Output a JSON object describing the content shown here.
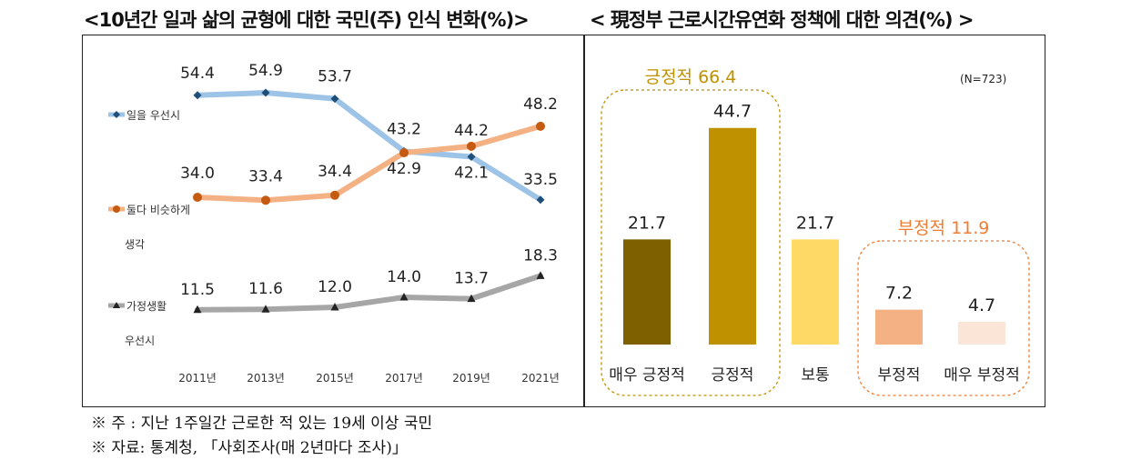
{
  "titles": {
    "left": "<10년간 일과 삶의 균형에 대한 국민(주) 인식 변화(%)>",
    "right": "< 現정부 근로시간유연화 정책에 대한 의견(%) >"
  },
  "notes": {
    "note1": "※ 주 : 지난 1주일간 근로한 적 있는 19세 이상 국민",
    "note2": "※ 자료: 통계청, 「사회조사(매 2년마다 조사)」"
  },
  "chart_data": [
    {
      "type": "line",
      "title": "10년간 일과 삶의 균형에 대한 국민(주) 인식 변화(%)",
      "x": [
        "2011년",
        "2013년",
        "2015년",
        "2017년",
        "2019년",
        "2021년"
      ],
      "ylim": [
        0,
        60
      ],
      "grid": false,
      "legend": "left",
      "series": [
        {
          "name": "일을 우선시",
          "legend_lines": [
            "일을 우선시"
          ],
          "color": "#9dc3e6",
          "marker": "diamond",
          "marker_color": "#1f4e79",
          "values": [
            54.4,
            54.9,
            53.7,
            43.2,
            42.1,
            33.5
          ]
        },
        {
          "name": "둘다 비슷하게 생각",
          "legend_lines": [
            "둘다 비슷하게",
            "생각"
          ],
          "color": "#f4b183",
          "marker": "circle",
          "marker_color": "#c55a11",
          "values": [
            34.0,
            33.4,
            34.4,
            42.9,
            44.2,
            48.2
          ]
        },
        {
          "name": "가정생활 우선시",
          "legend_lines": [
            "가정생활",
            "우선시"
          ],
          "color": "#a6a6a6",
          "marker": "triangle",
          "marker_color": "#222222",
          "values": [
            11.5,
            11.6,
            12.0,
            14.0,
            13.7,
            18.3
          ]
        }
      ]
    },
    {
      "type": "bar",
      "title": "現정부 근로시간유연화 정책에 대한 의견(%)",
      "categories": [
        "매우 긍정적",
        "긍정적",
        "보통",
        "부정적",
        "매우 부정적"
      ],
      "values": [
        21.7,
        44.7,
        21.7,
        7.2,
        4.7
      ],
      "colors": [
        "#7f6000",
        "#bf9000",
        "#ffd966",
        "#f4b183",
        "#fbe5d6"
      ],
      "ylim": [
        0,
        50
      ],
      "annotation_n": "(N=723)",
      "groups": [
        {
          "label": "긍정적 66.4",
          "color": "#bf9000",
          "members": [
            0,
            1
          ]
        },
        {
          "label": "부정적 11.9",
          "color": "#ed7d31",
          "members": [
            3,
            4
          ]
        }
      ]
    }
  ]
}
